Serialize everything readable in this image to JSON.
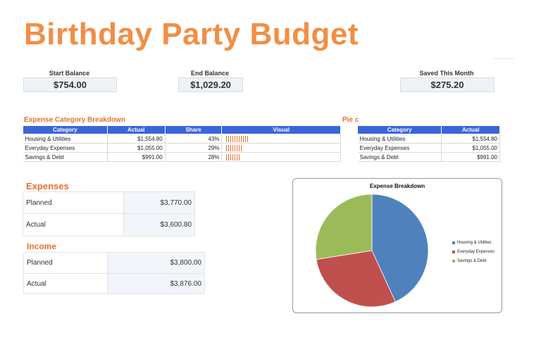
{
  "title": "Birthday Party Budget",
  "balances": {
    "start_label": "Start Balance",
    "start_value": "$754.00",
    "end_label": "End Balance",
    "end_value": "$1,029.20",
    "saved_label": "Saved This Month",
    "saved_value": "$275.20"
  },
  "breakdown": {
    "title": "Expense Category Breakdown",
    "headers": [
      "Category",
      "Actual",
      "Share",
      "Visual"
    ],
    "rows": [
      {
        "category": "Housing & Utilities",
        "actual": "$1,554.80",
        "share": "43%",
        "bars": 11
      },
      {
        "category": "Everyday Expenses",
        "actual": "$1,055.00",
        "share": "29%",
        "bars": 8
      },
      {
        "category": "Savings & Debt",
        "actual": "$991.00",
        "share": "28%",
        "bars": 7
      }
    ]
  },
  "pie_table": {
    "title": "Pie c",
    "headers": [
      "Category",
      "Actual"
    ],
    "rows": [
      {
        "category": "Housing & Utilities",
        "actual": "$1,554.80"
      },
      {
        "category": "Everyday Expenses",
        "actual": "$1,055.00"
      },
      {
        "category": "Savings & Debt",
        "actual": "$991.00"
      }
    ]
  },
  "expenses": {
    "title": "Expenses",
    "planned_label": "Planned",
    "planned_value": "$3,770.00",
    "actual_label": "Actual",
    "actual_value": "$3,600.80"
  },
  "income": {
    "title": "Income",
    "planned_label": "Planned",
    "planned_value": "$3,800.00",
    "actual_label": "Actual",
    "actual_value": "$3,876.00"
  },
  "colors": {
    "accent": "#e8702a",
    "title": "#f28e44",
    "header": "#3b66d8"
  },
  "chart_data": {
    "type": "pie",
    "title": "Expense Breakdown",
    "categories": [
      "Housing & Utilities",
      "Everyday Expenses",
      "Savings & Debt"
    ],
    "values": [
      1554.8,
      1055.0,
      991.0
    ],
    "colors": [
      "#4f81bd",
      "#c0504d",
      "#9bbb59"
    ],
    "legend": "right"
  }
}
